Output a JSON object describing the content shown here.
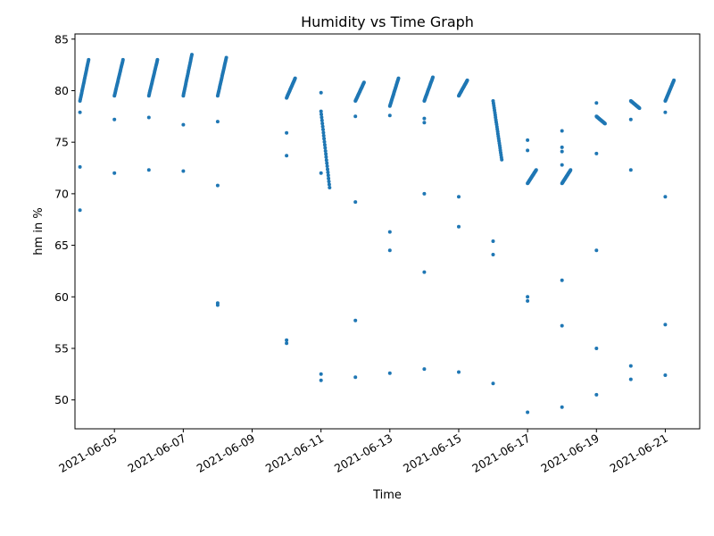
{
  "chart_data": {
    "type": "scatter",
    "title": "Humidity vs Time Graph",
    "xlabel": "Time",
    "ylabel": "hm in %",
    "xlim": [
      "2021-06-03T20:30",
      "2021-06-22T00:00"
    ],
    "ylim": [
      47.2,
      85.5
    ],
    "x_ticks": [
      "2021-06-05",
      "2021-06-07",
      "2021-06-09",
      "2021-06-11",
      "2021-06-13",
      "2021-06-15",
      "2021-06-17",
      "2021-06-19",
      "2021-06-21"
    ],
    "y_ticks": [
      50,
      55,
      60,
      65,
      70,
      75,
      80,
      85
    ],
    "grid": false,
    "marker_color": "#1f77b4",
    "series": [
      {
        "segments": [
          {
            "start": "2021-06-04T00:00",
            "end": "2021-06-04T06:00",
            "y_start": 79.0,
            "y_end": 83.0
          },
          {
            "start": "2021-06-05T00:00",
            "end": "2021-06-05T06:00",
            "y_start": 79.5,
            "y_end": 83.0
          },
          {
            "start": "2021-06-06T00:00",
            "end": "2021-06-06T06:00",
            "y_start": 79.5,
            "y_end": 83.0
          },
          {
            "start": "2021-06-07T00:00",
            "end": "2021-06-07T06:00",
            "y_start": 79.5,
            "y_end": 83.5
          },
          {
            "start": "2021-06-08T00:00",
            "end": "2021-06-08T06:00",
            "y_start": 79.5,
            "y_end": 83.2
          },
          {
            "start": "2021-06-10T00:00",
            "end": "2021-06-10T06:00",
            "y_start": 79.3,
            "y_end": 81.2
          },
          {
            "start": "2021-06-11T00:00",
            "end": "2021-06-11T06:00",
            "y_start": 78.0,
            "y_end": 70.6
          },
          {
            "start": "2021-06-12T00:00",
            "end": "2021-06-12T06:00",
            "y_start": 79.0,
            "y_end": 80.8
          },
          {
            "start": "2021-06-13T00:00",
            "end": "2021-06-13T06:00",
            "y_start": 78.5,
            "y_end": 81.2
          },
          {
            "start": "2021-06-14T00:00",
            "end": "2021-06-14T06:00",
            "y_start": 79.0,
            "y_end": 81.3
          },
          {
            "start": "2021-06-15T00:00",
            "end": "2021-06-15T06:00",
            "y_start": 79.5,
            "y_end": 81.0
          },
          {
            "start": "2021-06-16T00:00",
            "end": "2021-06-16T06:00",
            "y_start": 79.0,
            "y_end": 73.3
          },
          {
            "start": "2021-06-17T00:00",
            "end": "2021-06-17T06:00",
            "y_start": 71.0,
            "y_end": 72.3
          },
          {
            "start": "2021-06-18T00:00",
            "end": "2021-06-18T06:00",
            "y_start": 71.0,
            "y_end": 72.3
          },
          {
            "start": "2021-06-19T00:00",
            "end": "2021-06-19T06:00",
            "y_start": 77.5,
            "y_end": 76.8
          },
          {
            "start": "2021-06-20T00:00",
            "end": "2021-06-20T06:00",
            "y_start": 79.0,
            "y_end": 78.3
          },
          {
            "start": "2021-06-21T00:00",
            "end": "2021-06-21T06:00",
            "y_start": 79.0,
            "y_end": 81.0
          }
        ],
        "points": [
          {
            "x": "2021-06-04T00:00",
            "y": 68.4
          },
          {
            "x": "2021-06-04T00:00",
            "y": 72.6
          },
          {
            "x": "2021-06-04T00:00",
            "y": 77.9
          },
          {
            "x": "2021-06-05T00:00",
            "y": 72.0
          },
          {
            "x": "2021-06-05T00:00",
            "y": 77.2
          },
          {
            "x": "2021-06-06T00:00",
            "y": 72.3
          },
          {
            "x": "2021-06-06T00:00",
            "y": 77.4
          },
          {
            "x": "2021-06-07T00:00",
            "y": 72.2
          },
          {
            "x": "2021-06-07T00:00",
            "y": 76.7
          },
          {
            "x": "2021-06-08T00:00",
            "y": 59.2
          },
          {
            "x": "2021-06-08T00:00",
            "y": 59.4
          },
          {
            "x": "2021-06-08T00:00",
            "y": 70.8
          },
          {
            "x": "2021-06-08T00:00",
            "y": 77.0
          },
          {
            "x": "2021-06-10T00:00",
            "y": 55.5
          },
          {
            "x": "2021-06-10T00:00",
            "y": 55.8
          },
          {
            "x": "2021-06-10T00:00",
            "y": 73.7
          },
          {
            "x": "2021-06-10T00:00",
            "y": 75.9
          },
          {
            "x": "2021-06-11T00:00",
            "y": 51.9
          },
          {
            "x": "2021-06-11T00:00",
            "y": 52.5
          },
          {
            "x": "2021-06-11T00:00",
            "y": 72.0
          },
          {
            "x": "2021-06-11T00:00",
            "y": 79.8
          },
          {
            "x": "2021-06-12T00:00",
            "y": 52.2
          },
          {
            "x": "2021-06-12T00:00",
            "y": 57.7
          },
          {
            "x": "2021-06-12T00:00",
            "y": 69.2
          },
          {
            "x": "2021-06-12T00:00",
            "y": 77.5
          },
          {
            "x": "2021-06-13T00:00",
            "y": 52.6
          },
          {
            "x": "2021-06-13T00:00",
            "y": 64.5
          },
          {
            "x": "2021-06-13T00:00",
            "y": 66.3
          },
          {
            "x": "2021-06-13T00:00",
            "y": 77.6
          },
          {
            "x": "2021-06-14T00:00",
            "y": 53.0
          },
          {
            "x": "2021-06-14T00:00",
            "y": 62.4
          },
          {
            "x": "2021-06-14T00:00",
            "y": 70.0
          },
          {
            "x": "2021-06-14T00:00",
            "y": 76.9
          },
          {
            "x": "2021-06-14T00:00",
            "y": 77.3
          },
          {
            "x": "2021-06-15T00:00",
            "y": 52.7
          },
          {
            "x": "2021-06-15T00:00",
            "y": 66.8
          },
          {
            "x": "2021-06-15T00:00",
            "y": 69.7
          },
          {
            "x": "2021-06-16T00:00",
            "y": 51.6
          },
          {
            "x": "2021-06-16T00:00",
            "y": 64.1
          },
          {
            "x": "2021-06-16T00:00",
            "y": 65.4
          },
          {
            "x": "2021-06-17T00:00",
            "y": 48.8
          },
          {
            "x": "2021-06-17T00:00",
            "y": 59.6
          },
          {
            "x": "2021-06-17T00:00",
            "y": 60.0
          },
          {
            "x": "2021-06-17T00:00",
            "y": 74.2
          },
          {
            "x": "2021-06-17T00:00",
            "y": 75.2
          },
          {
            "x": "2021-06-18T00:00",
            "y": 49.3
          },
          {
            "x": "2021-06-18T00:00",
            "y": 57.2
          },
          {
            "x": "2021-06-18T00:00",
            "y": 61.6
          },
          {
            "x": "2021-06-18T00:00",
            "y": 72.8
          },
          {
            "x": "2021-06-18T00:00",
            "y": 74.1
          },
          {
            "x": "2021-06-18T00:00",
            "y": 74.5
          },
          {
            "x": "2021-06-18T00:00",
            "y": 76.1
          },
          {
            "x": "2021-06-19T00:00",
            "y": 50.5
          },
          {
            "x": "2021-06-19T00:00",
            "y": 55.0
          },
          {
            "x": "2021-06-19T00:00",
            "y": 64.5
          },
          {
            "x": "2021-06-19T00:00",
            "y": 73.9
          },
          {
            "x": "2021-06-19T00:00",
            "y": 78.8
          },
          {
            "x": "2021-06-20T00:00",
            "y": 52.0
          },
          {
            "x": "2021-06-20T00:00",
            "y": 53.3
          },
          {
            "x": "2021-06-20T00:00",
            "y": 72.3
          },
          {
            "x": "2021-06-20T00:00",
            "y": 77.2
          },
          {
            "x": "2021-06-21T00:00",
            "y": 52.4
          },
          {
            "x": "2021-06-21T00:00",
            "y": 57.3
          },
          {
            "x": "2021-06-21T00:00",
            "y": 69.7
          },
          {
            "x": "2021-06-21T00:00",
            "y": 77.9
          }
        ]
      }
    ]
  }
}
